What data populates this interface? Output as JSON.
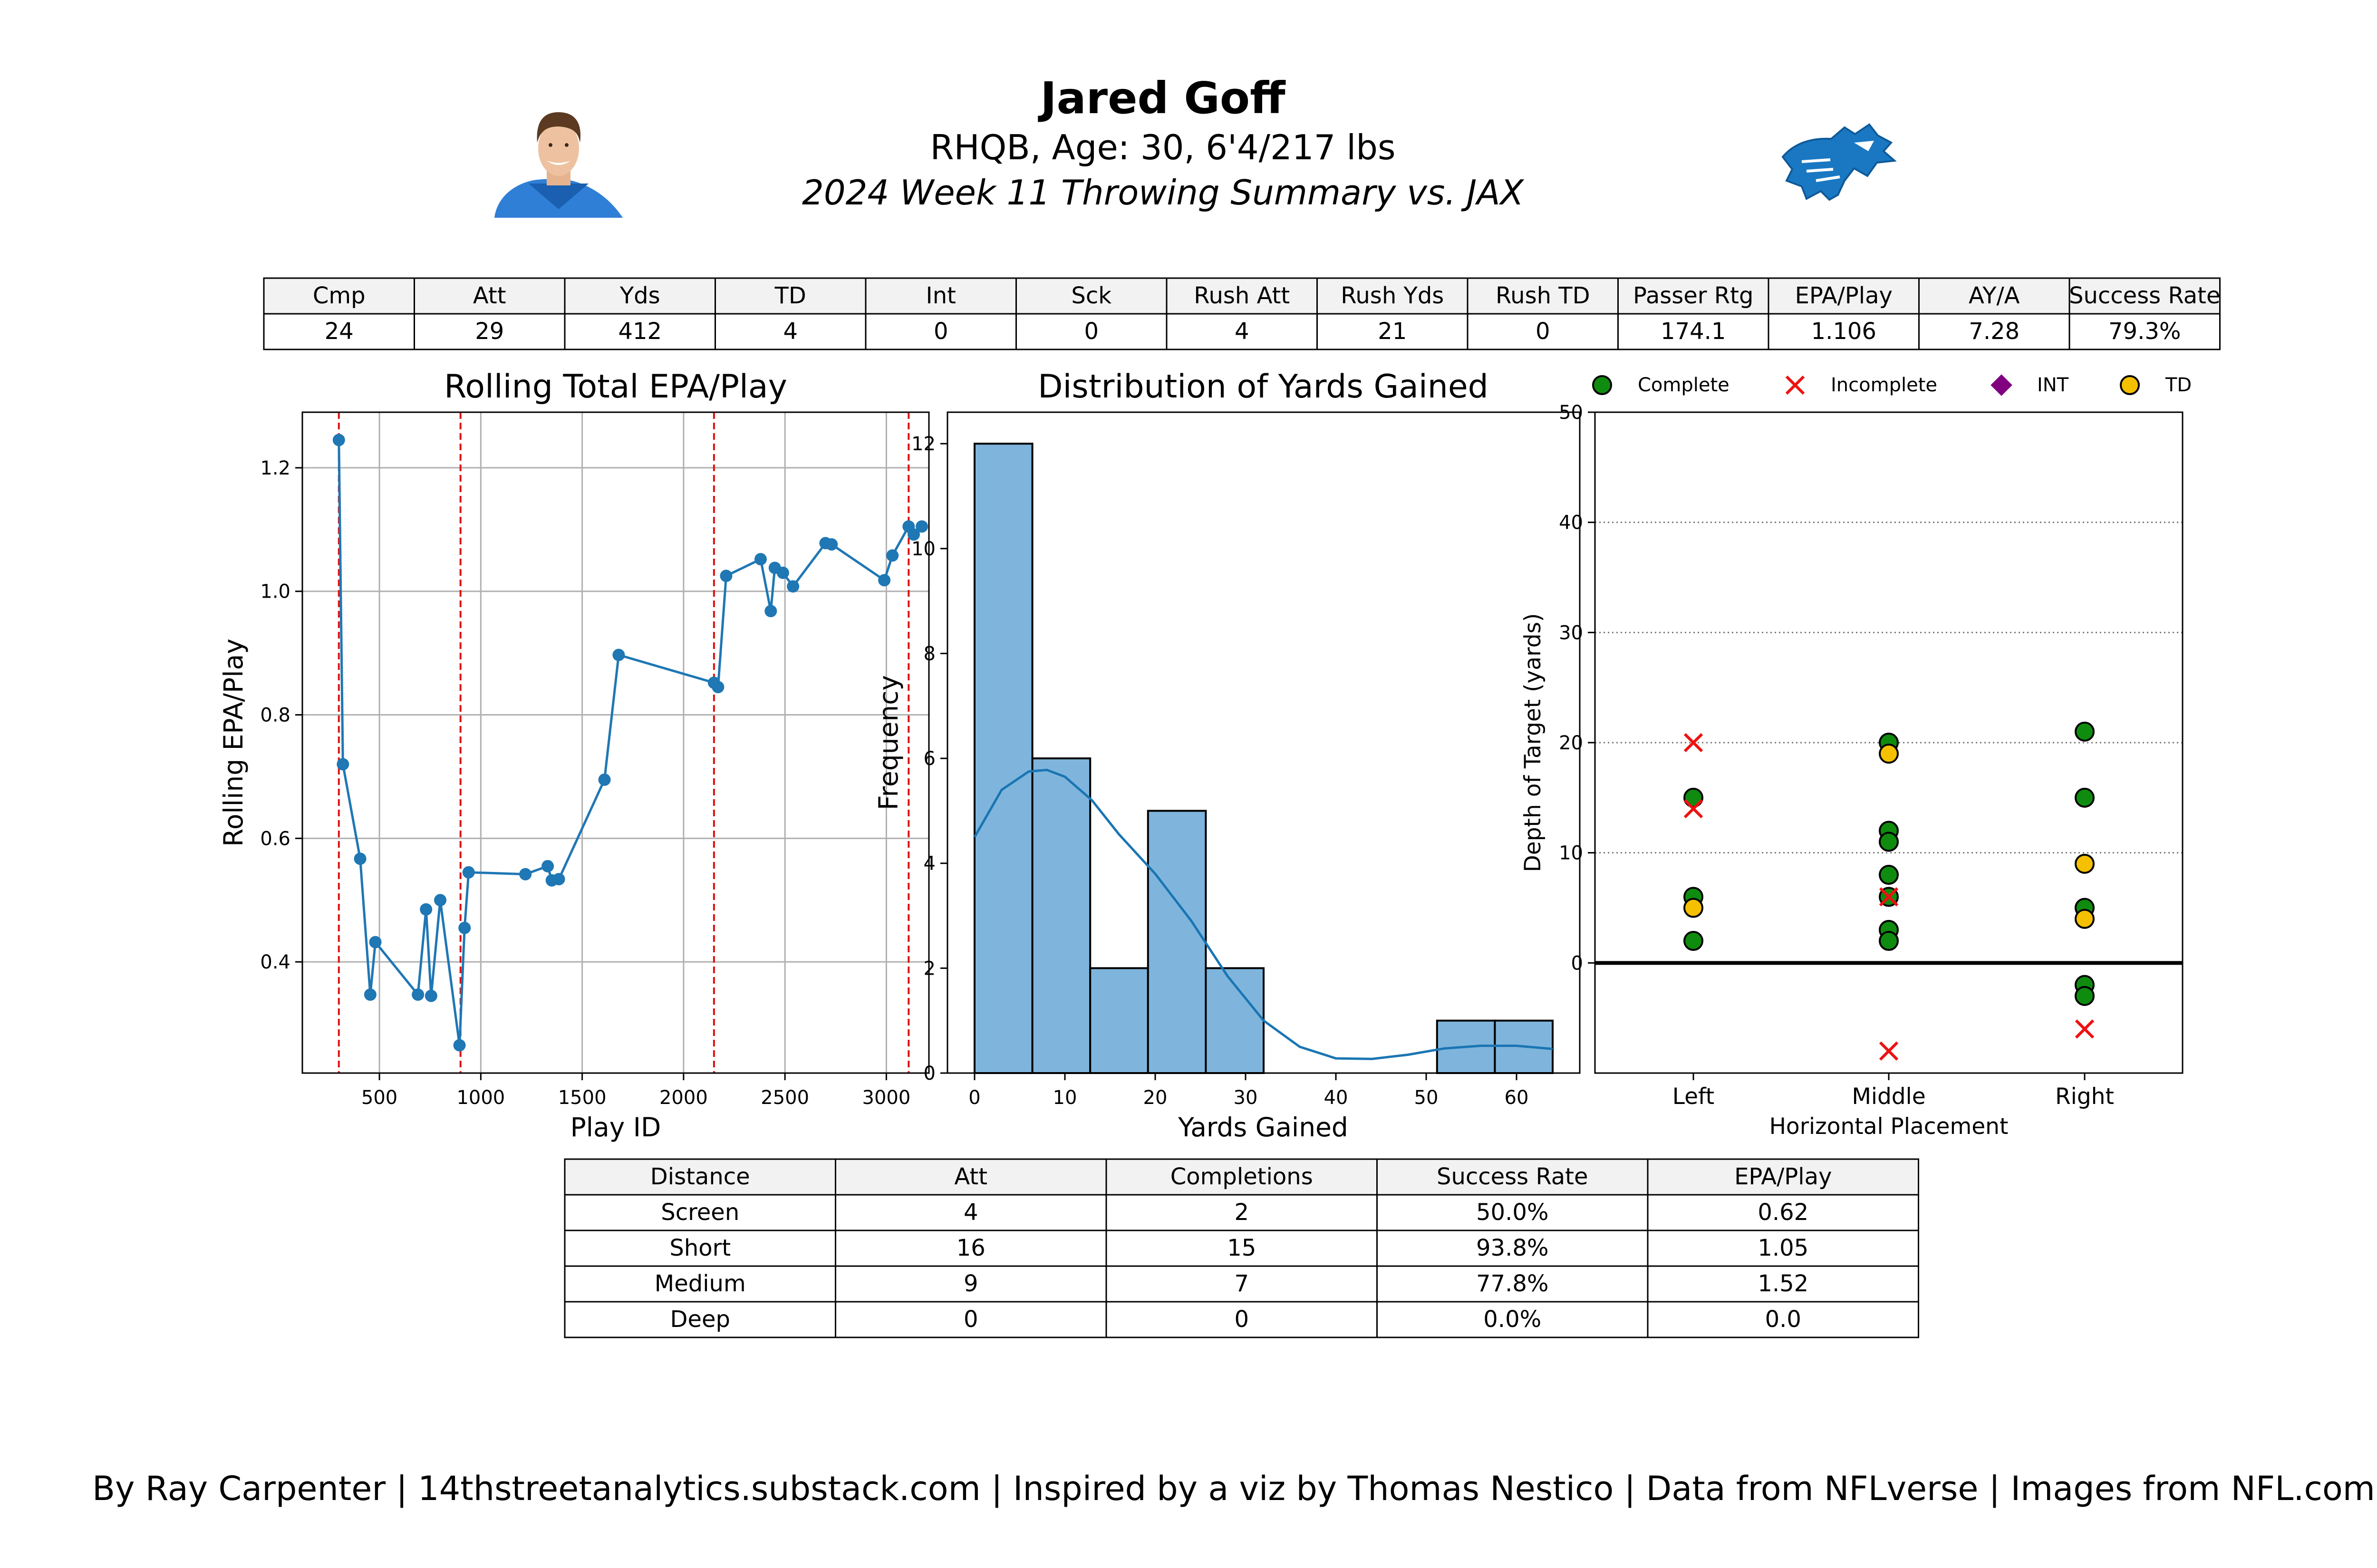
{
  "header": {
    "name": "Jared Goff",
    "bio": "RHQB, Age: 30, 6'4/217 lbs",
    "subtitle": "2024 Week 11 Throwing Summary vs. JAX"
  },
  "stats_table": {
    "columns": [
      "Cmp",
      "Att",
      "Yds",
      "TD",
      "Int",
      "Sck",
      "Rush Att",
      "Rush Yds",
      "Rush TD",
      "Passer Rtg",
      "EPA/Play",
      "AY/A",
      "Success Rate"
    ],
    "values": [
      "24",
      "29",
      "412",
      "4",
      "0",
      "0",
      "4",
      "21",
      "0",
      "174.1",
      "1.106",
      "7.28",
      "79.3%"
    ]
  },
  "chart_data": [
    {
      "type": "line",
      "title": "Rolling Total EPA/Play",
      "xlabel": "Play ID",
      "ylabel": "Rolling EPA/Play",
      "xlim": [
        120,
        3210
      ],
      "ylim": [
        0.22,
        1.29
      ],
      "xticks": [
        500,
        1000,
        1500,
        2000,
        2500,
        3000
      ],
      "yticks": [
        0.4,
        0.6,
        0.8,
        1.0,
        1.2
      ],
      "grid": true,
      "quarter_lines": [
        300,
        900,
        2150,
        3110
      ],
      "points": [
        [
          300,
          1.245
        ],
        [
          320,
          0.72
        ],
        [
          405,
          0.567
        ],
        [
          455,
          0.347
        ],
        [
          480,
          0.432
        ],
        [
          690,
          0.347
        ],
        [
          730,
          0.485
        ],
        [
          755,
          0.345
        ],
        [
          800,
          0.5
        ],
        [
          895,
          0.265
        ],
        [
          920,
          0.455
        ],
        [
          940,
          0.545
        ],
        [
          1220,
          0.542
        ],
        [
          1330,
          0.555
        ],
        [
          1350,
          0.532
        ],
        [
          1385,
          0.534
        ],
        [
          1610,
          0.695
        ],
        [
          1680,
          0.897
        ],
        [
          2150,
          0.852
        ],
        [
          2170,
          0.845
        ],
        [
          2210,
          1.025
        ],
        [
          2380,
          1.052
        ],
        [
          2430,
          0.968
        ],
        [
          2450,
          1.038
        ],
        [
          2490,
          1.03
        ],
        [
          2540,
          1.008
        ],
        [
          2700,
          1.078
        ],
        [
          2730,
          1.076
        ],
        [
          2990,
          1.018
        ],
        [
          3030,
          1.058
        ],
        [
          3110,
          1.105
        ],
        [
          3135,
          1.092
        ],
        [
          3175,
          1.105
        ]
      ]
    },
    {
      "type": "bar",
      "title": "Distribution of Yards Gained",
      "xlabel": "Yards Gained",
      "ylabel": "Frequency",
      "xlim": [
        -3,
        67
      ],
      "ylim": [
        0,
        12.6
      ],
      "xticks": [
        0,
        10,
        20,
        30,
        40,
        50,
        60
      ],
      "yticks": [
        0,
        2,
        4,
        6,
        8,
        10,
        12
      ],
      "bin_edges": [
        0,
        6.4,
        12.8,
        19.2,
        25.6,
        32,
        38.4,
        44.8,
        51.2,
        57.6,
        64
      ],
      "counts": [
        12,
        6,
        2,
        5,
        2,
        0,
        0,
        0,
        1,
        1
      ],
      "kde": [
        [
          0,
          4.5
        ],
        [
          3,
          5.4
        ],
        [
          6,
          5.75
        ],
        [
          8,
          5.78
        ],
        [
          10,
          5.65
        ],
        [
          13,
          5.2
        ],
        [
          16,
          4.55
        ],
        [
          20,
          3.8
        ],
        [
          24,
          2.9
        ],
        [
          28,
          1.85
        ],
        [
          32,
          1.0
        ],
        [
          36,
          0.5
        ],
        [
          40,
          0.28
        ],
        [
          44,
          0.27
        ],
        [
          48,
          0.35
        ],
        [
          52,
          0.47
        ],
        [
          56,
          0.52
        ],
        [
          60,
          0.52
        ],
        [
          64,
          0.46
        ]
      ]
    },
    {
      "type": "scatter",
      "xlabel": "Horizontal Placement",
      "ylabel": "Depth of Target (yards)",
      "categories": [
        "Left",
        "Middle",
        "Right"
      ],
      "ylim": [
        -10,
        50
      ],
      "yticks": [
        0,
        10,
        20,
        30,
        40,
        50
      ],
      "grid": "horizontal dotted",
      "legend": [
        "Complete",
        "Incomplete",
        "INT",
        "TD"
      ],
      "series": [
        {
          "name": "Complete",
          "points": [
            [
              "Left",
              15
            ],
            [
              "Left",
              6
            ],
            [
              "Left",
              2
            ],
            [
              "Middle",
              20
            ],
            [
              "Middle",
              12
            ],
            [
              "Middle",
              11
            ],
            [
              "Middle",
              8
            ],
            [
              "Middle",
              6
            ],
            [
              "Middle",
              3
            ],
            [
              "Middle",
              2
            ],
            [
              "Right",
              21
            ],
            [
              "Right",
              15
            ],
            [
              "Right",
              5
            ],
            [
              "Right",
              -2
            ],
            [
              "Right",
              -3
            ]
          ]
        },
        {
          "name": "Incomplete",
          "points": [
            [
              "Left",
              20
            ],
            [
              "Left",
              14
            ],
            [
              "Middle",
              6
            ],
            [
              "Middle",
              -8
            ],
            [
              "Right",
              -6
            ]
          ]
        },
        {
          "name": "INT",
          "points": []
        },
        {
          "name": "TD",
          "points": [
            [
              "Left",
              5
            ],
            [
              "Middle",
              19
            ],
            [
              "Right",
              9
            ],
            [
              "Right",
              4
            ]
          ]
        }
      ]
    }
  ],
  "distance_table": {
    "columns": [
      "Distance",
      "Att",
      "Completions",
      "Success Rate",
      "EPA/Play"
    ],
    "rows": [
      [
        "Screen",
        "4",
        "2",
        "50.0%",
        "0.62"
      ],
      [
        "Short",
        "16",
        "15",
        "93.8%",
        "1.05"
      ],
      [
        "Medium",
        "9",
        "7",
        "77.8%",
        "1.52"
      ],
      [
        "Deep",
        "0",
        "0",
        "0.0%",
        "0.0"
      ]
    ]
  },
  "footer": "By Ray Carpenter | 14thstreetanalytics.substack.com | Inspired by a viz by Thomas Nestico | Data from NFLverse | Images from NFL.com",
  "colors": {
    "line": "#1f77b4",
    "bar": "#7fb5dc",
    "kde": "#1a75b3",
    "quarter_line": "#dd1111",
    "complete": "#0f8c0f",
    "incomplete": "#ee1111",
    "int": "#800080",
    "td": "#f5c000",
    "header_cell": "#f2f2f2",
    "lions_blue": "#1a78c2"
  }
}
